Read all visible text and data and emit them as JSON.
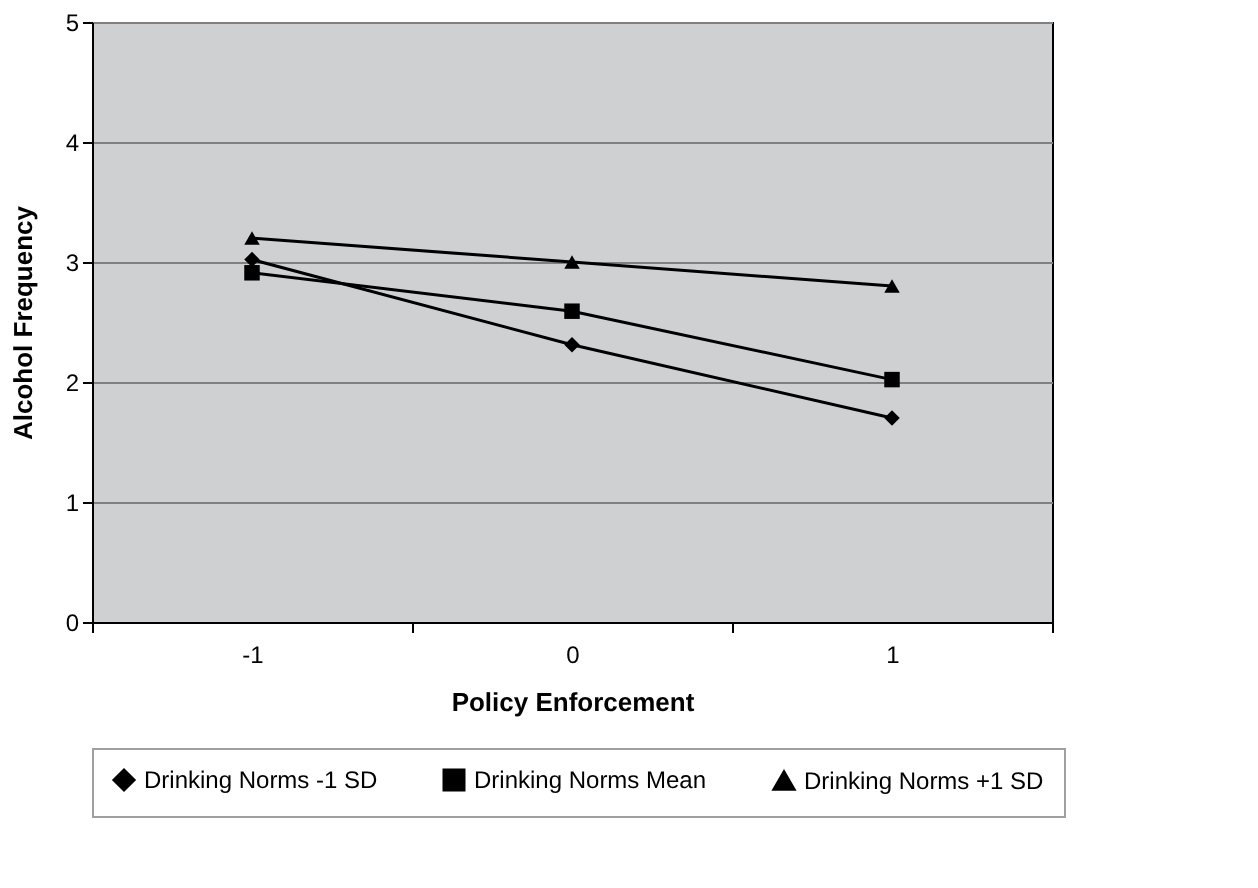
{
  "chart_data": {
    "type": "line",
    "xlabel": "Policy Enforcement",
    "ylabel": "Alcohol Frequency",
    "categories": [
      "-1",
      "0",
      "1"
    ],
    "series": [
      {
        "name": "Drinking Norms -1 SD",
        "color": "#000000",
        "marker": "diamond",
        "values": [
          3.02,
          2.31,
          1.7
        ]
      },
      {
        "name": "Drinking Norms Mean",
        "color": "#000000",
        "marker": "square",
        "values": [
          2.91,
          2.59,
          2.02
        ]
      },
      {
        "name": "Drinking Norms +1 SD",
        "color": "#000000",
        "marker": "triangle",
        "values": [
          3.2,
          3.0,
          2.8
        ]
      }
    ],
    "ylim": [
      0,
      5
    ],
    "yticks": [
      0,
      1,
      2,
      3,
      4,
      5
    ],
    "grid": "y",
    "legend": "bottom",
    "line_style": "solid"
  }
}
